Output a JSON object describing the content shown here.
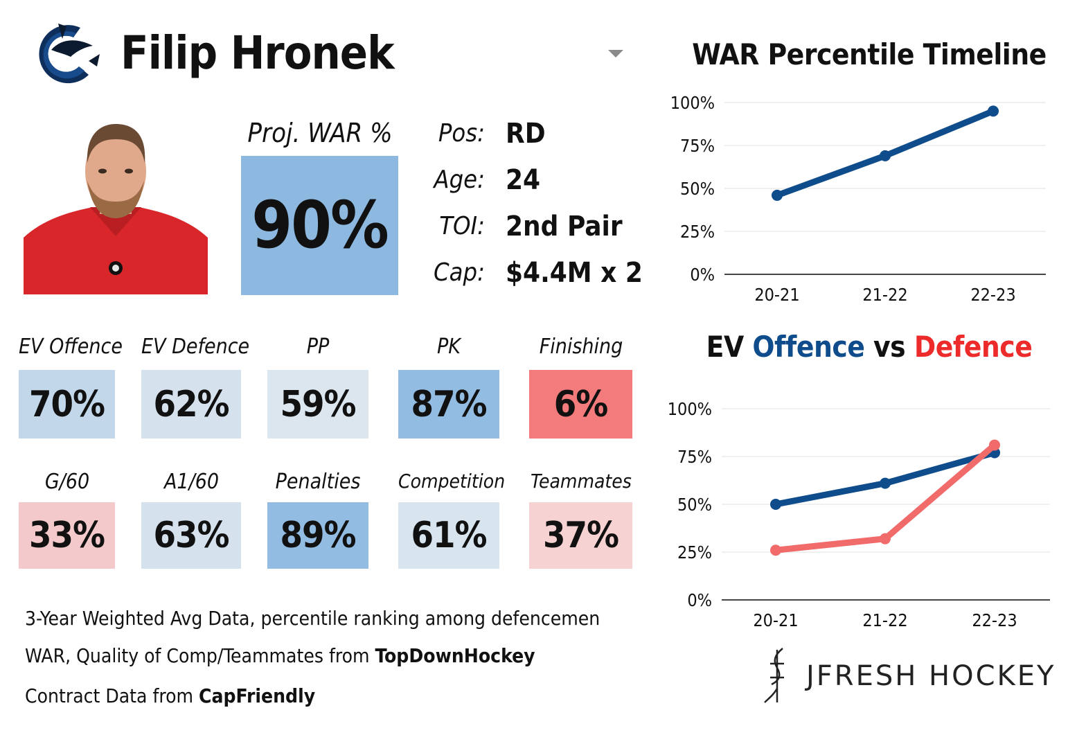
{
  "player": {
    "name": "Filip Hronek"
  },
  "projected": {
    "label": "Proj. WAR %",
    "value": "90%"
  },
  "info": [
    {
      "key": "Pos:",
      "value": "RD"
    },
    {
      "key": "Age:",
      "value": "24"
    },
    {
      "key": "TOI:",
      "value": "2nd Pair"
    },
    {
      "key": "Cap:",
      "value": "$4.4M x 2"
    }
  ],
  "tiles": [
    {
      "label": "EV Offence",
      "value": "70%",
      "color": "#c2d7ea"
    },
    {
      "label": "EV Defence",
      "value": "62%",
      "color": "#d5e2ee"
    },
    {
      "label": "PP",
      "value": "59%",
      "color": "#dbe6ef"
    },
    {
      "label": "PK",
      "value": "87%",
      "color": "#92bce2"
    },
    {
      "label": "Finishing",
      "value": "6%",
      "color": "#f37b7b"
    },
    {
      "label": "G/60",
      "value": "33%",
      "color": "#f3c9cb"
    },
    {
      "label": "A1/60",
      "value": "63%",
      "color": "#d5e2ee"
    },
    {
      "label": "Penalties",
      "value": "89%",
      "color": "#92bce2"
    },
    {
      "label": "Competition",
      "value": "61%",
      "color": "#d8e4ee"
    },
    {
      "label": "Teammates",
      "value": "37%",
      "color": "#f6d2d3"
    }
  ],
  "footer": {
    "line1": "3-Year Weighted Avg Data, percentile ranking among defencemen",
    "line2_prefix": "WAR, Quality of Comp/Teammates from ",
    "line2_source": "TopDownHockey",
    "line3_prefix": "Contract Data from ",
    "line3_source": "CapFriendly"
  },
  "brand": {
    "text": "JFRESH HOCKEY"
  },
  "colors": {
    "offence": "#0f4c8c",
    "defence": "#f26b6b",
    "war_line": "#0f4c8c"
  },
  "chart_data": [
    {
      "type": "line",
      "title": "WAR Percentile Timeline",
      "categories": [
        "20-21",
        "21-22",
        "22-23"
      ],
      "series": [
        {
          "values": [
            46,
            69,
            95
          ]
        }
      ],
      "ylim": [
        0,
        100
      ],
      "yticks": [
        "0%",
        "25%",
        "50%",
        "75%",
        "100%"
      ],
      "grid": true
    },
    {
      "type": "line",
      "title_parts": [
        "EV ",
        "Offence",
        " vs ",
        "Defence"
      ],
      "categories": [
        "20-21",
        "21-22",
        "22-23"
      ],
      "series": [
        {
          "name": "Offence",
          "values": [
            50,
            61,
            77
          ]
        },
        {
          "name": "Defence",
          "values": [
            26,
            32,
            81
          ]
        }
      ],
      "ylim": [
        0,
        100
      ],
      "yticks": [
        "0%",
        "25%",
        "50%",
        "75%",
        "100%"
      ],
      "grid": true
    }
  ]
}
